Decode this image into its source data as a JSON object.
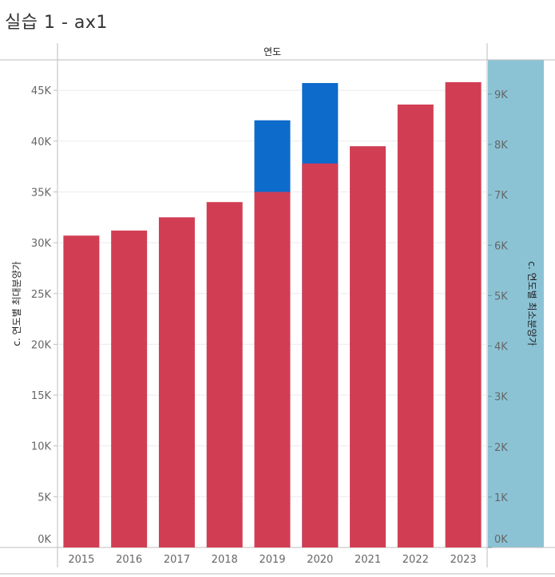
{
  "page": {
    "title": "실습 1 - ax1"
  },
  "colors": {
    "bar_max": "#d13e54",
    "bar_max_highlight": "#0d6bcc",
    "right_axis_bg": "#8bc3d5",
    "grid": "#ececec",
    "axis_line": "#bdbdbd"
  },
  "chart_data": {
    "type": "bar",
    "column_header": "연도",
    "categories": [
      "2015",
      "2016",
      "2017",
      "2018",
      "2019",
      "2020",
      "2021",
      "2022",
      "2023"
    ],
    "series": [
      {
        "name": "c. 연도별 최대분양가",
        "axis": "left",
        "values": [
          30700,
          31200,
          32500,
          34000,
          35000,
          37800,
          39500,
          43600,
          45800
        ]
      },
      {
        "name": "c. 연도별 최소분양가",
        "axis": "right",
        "values": [
          null,
          null,
          null,
          null,
          8480,
          9220,
          null,
          null,
          null
        ]
      }
    ],
    "y_left": {
      "label": "c. 연도별 최대분양가",
      "ylim": [
        0,
        48000
      ],
      "ticks": [
        0,
        5000,
        10000,
        15000,
        20000,
        25000,
        30000,
        35000,
        40000,
        45000
      ],
      "tick_labels": [
        "0K",
        "5K",
        "10K",
        "15K",
        "20K",
        "25K",
        "30K",
        "35K",
        "40K",
        "45K"
      ]
    },
    "y_right": {
      "label": "c. 연도별 최소분양가",
      "ylim": [
        0,
        9680
      ],
      "ticks": [
        0,
        1000,
        2000,
        3000,
        4000,
        5000,
        6000,
        7000,
        8000,
        9000
      ],
      "tick_labels": [
        "0K",
        "1K",
        "2K",
        "3K",
        "4K",
        "5K",
        "6K",
        "7K",
        "8K",
        "9K"
      ]
    }
  }
}
